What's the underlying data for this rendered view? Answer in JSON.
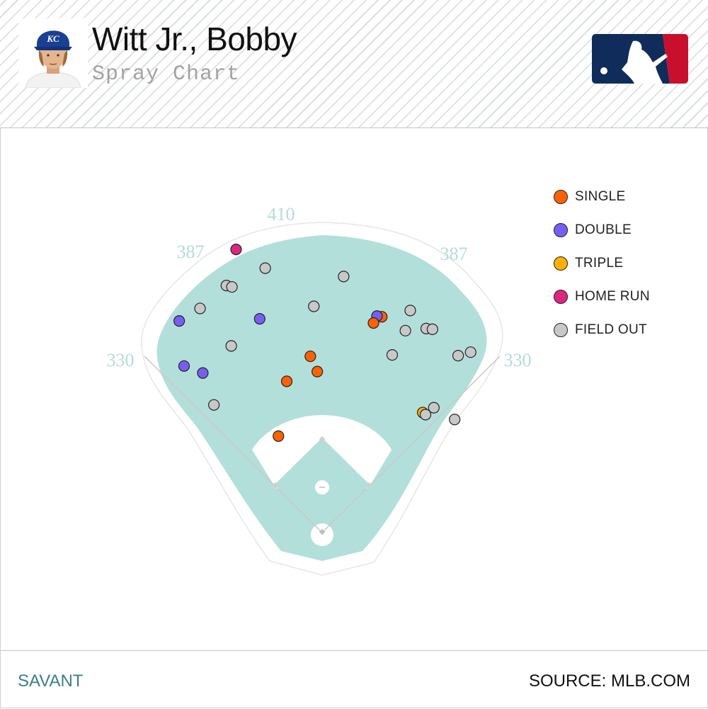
{
  "header": {
    "player_name": "Witt Jr., Bobby",
    "subtitle": "Spray Chart",
    "team_cap_letters": "KC"
  },
  "footer": {
    "left": "SAVANT",
    "right": "SOURCE: MLB.COM"
  },
  "colors": {
    "field_fill": "#b3dfdb",
    "single": "#fe6100",
    "double": "#785ef0",
    "triple": "#ffb000",
    "home_run": "#dc267f",
    "field_out": "#c8c8c8",
    "mlb_blue": "#0f2c5b",
    "mlb_red": "#c8102e"
  },
  "chart_data": {
    "type": "scatter",
    "title": "Spray Chart",
    "fence_distances": {
      "left_line": "330",
      "left_center": "387",
      "center": "410",
      "right_center": "387",
      "right_line": "330"
    },
    "legend": [
      {
        "key": "single",
        "label": "SINGLE"
      },
      {
        "key": "double",
        "label": "DOUBLE"
      },
      {
        "key": "triple",
        "label": "TRIPLE"
      },
      {
        "key": "home_run",
        "label": "HOME RUN"
      },
      {
        "key": "field_out",
        "label": "FIELD OUT"
      }
    ],
    "points": [
      {
        "type": "home_run",
        "x": -124,
        "y": 408
      },
      {
        "type": "field_out",
        "x": -82,
        "y": 381
      },
      {
        "type": "field_out",
        "x": 31,
        "y": 369
      },
      {
        "type": "field_out",
        "x": -138,
        "y": 356
      },
      {
        "type": "field_out",
        "x": -130,
        "y": 354
      },
      {
        "type": "field_out",
        "x": -12,
        "y": 326
      },
      {
        "type": "field_out",
        "x": -176,
        "y": 323
      },
      {
        "type": "field_out",
        "x": 127,
        "y": 320
      },
      {
        "type": "double",
        "x": -90,
        "y": 308
      },
      {
        "type": "double",
        "x": -206,
        "y": 305
      },
      {
        "type": "single",
        "x": 86,
        "y": 311
      },
      {
        "type": "double",
        "x": 79,
        "y": 312
      },
      {
        "type": "single",
        "x": 74,
        "y": 302
      },
      {
        "type": "field_out",
        "x": 150,
        "y": 294
      },
      {
        "type": "field_out",
        "x": 159,
        "y": 293
      },
      {
        "type": "field_out",
        "x": 120,
        "y": 291
      },
      {
        "type": "field_out",
        "x": -131,
        "y": 269
      },
      {
        "type": "field_out",
        "x": 101,
        "y": 256
      },
      {
        "type": "field_out",
        "x": 196,
        "y": 255
      },
      {
        "type": "field_out",
        "x": 214,
        "y": 260
      },
      {
        "type": "single",
        "x": -17,
        "y": 254
      },
      {
        "type": "double",
        "x": -199,
        "y": 240
      },
      {
        "type": "single",
        "x": -7,
        "y": 232
      },
      {
        "type": "double",
        "x": -172,
        "y": 230
      },
      {
        "type": "single",
        "x": -51,
        "y": 218
      },
      {
        "type": "field_out",
        "x": 161,
        "y": 180
      },
      {
        "type": "field_out",
        "x": -156,
        "y": 184
      },
      {
        "type": "triple",
        "x": 145,
        "y": 173
      },
      {
        "type": "field_out",
        "x": 149,
        "y": 170
      },
      {
        "type": "field_out",
        "x": 191,
        "y": 163
      },
      {
        "type": "single",
        "x": -63,
        "y": 139
      }
    ]
  }
}
